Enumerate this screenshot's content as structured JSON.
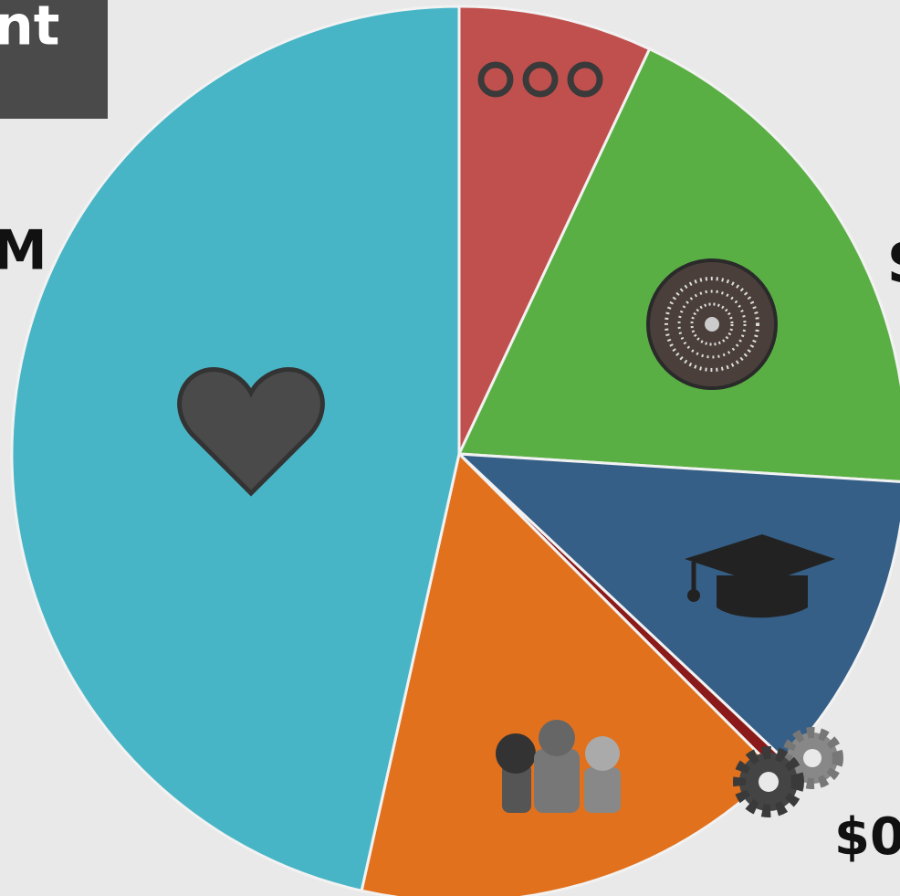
{
  "chart_data": {
    "type": "pie",
    "title": "nt",
    "values": [
      7,
      19,
      11,
      0.5,
      16,
      46.5
    ],
    "colors": [
      "#c0504d",
      "#5aaf44",
      "#355f87",
      "#8b1a1a",
      "#e2711d",
      "#48b5c6"
    ],
    "annotations": [
      "M",
      "S",
      "$0"
    ]
  }
}
